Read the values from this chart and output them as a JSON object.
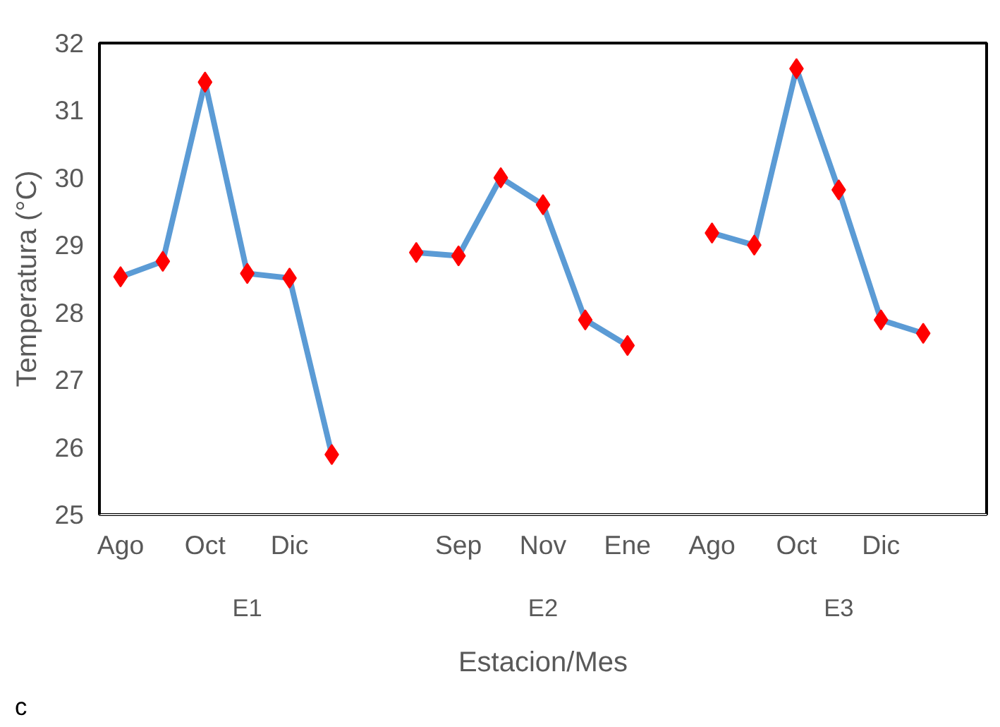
{
  "chart_data": {
    "type": "line",
    "xlabel": "Estacion/Mes",
    "ylabel": "Temperatura (°C)",
    "categories": [
      "Ago",
      null,
      "Oct",
      null,
      "Dic",
      null,
      null,
      null,
      "Sep",
      null,
      "Nov",
      null,
      "Ene",
      null,
      "Ago",
      null,
      "Oct",
      null,
      "Dic",
      null,
      null
    ],
    "series": [
      {
        "color": "#5b9bd5",
        "values": [
          28.53,
          28.76,
          31.42,
          28.58,
          28.51,
          25.89,
          null,
          28.89,
          28.84,
          30.0,
          29.6,
          27.89,
          27.51,
          null,
          29.18,
          29.0,
          31.62,
          29.82,
          27.89,
          27.69,
          null
        ]
      }
    ],
    "marker": "diamond",
    "ylim": [
      25,
      32
    ],
    "yticks": [
      25,
      26,
      27,
      28,
      29,
      30,
      31,
      32
    ],
    "grid": false,
    "annotations": [
      "c",
      "E1",
      "E2",
      "E3"
    ]
  }
}
